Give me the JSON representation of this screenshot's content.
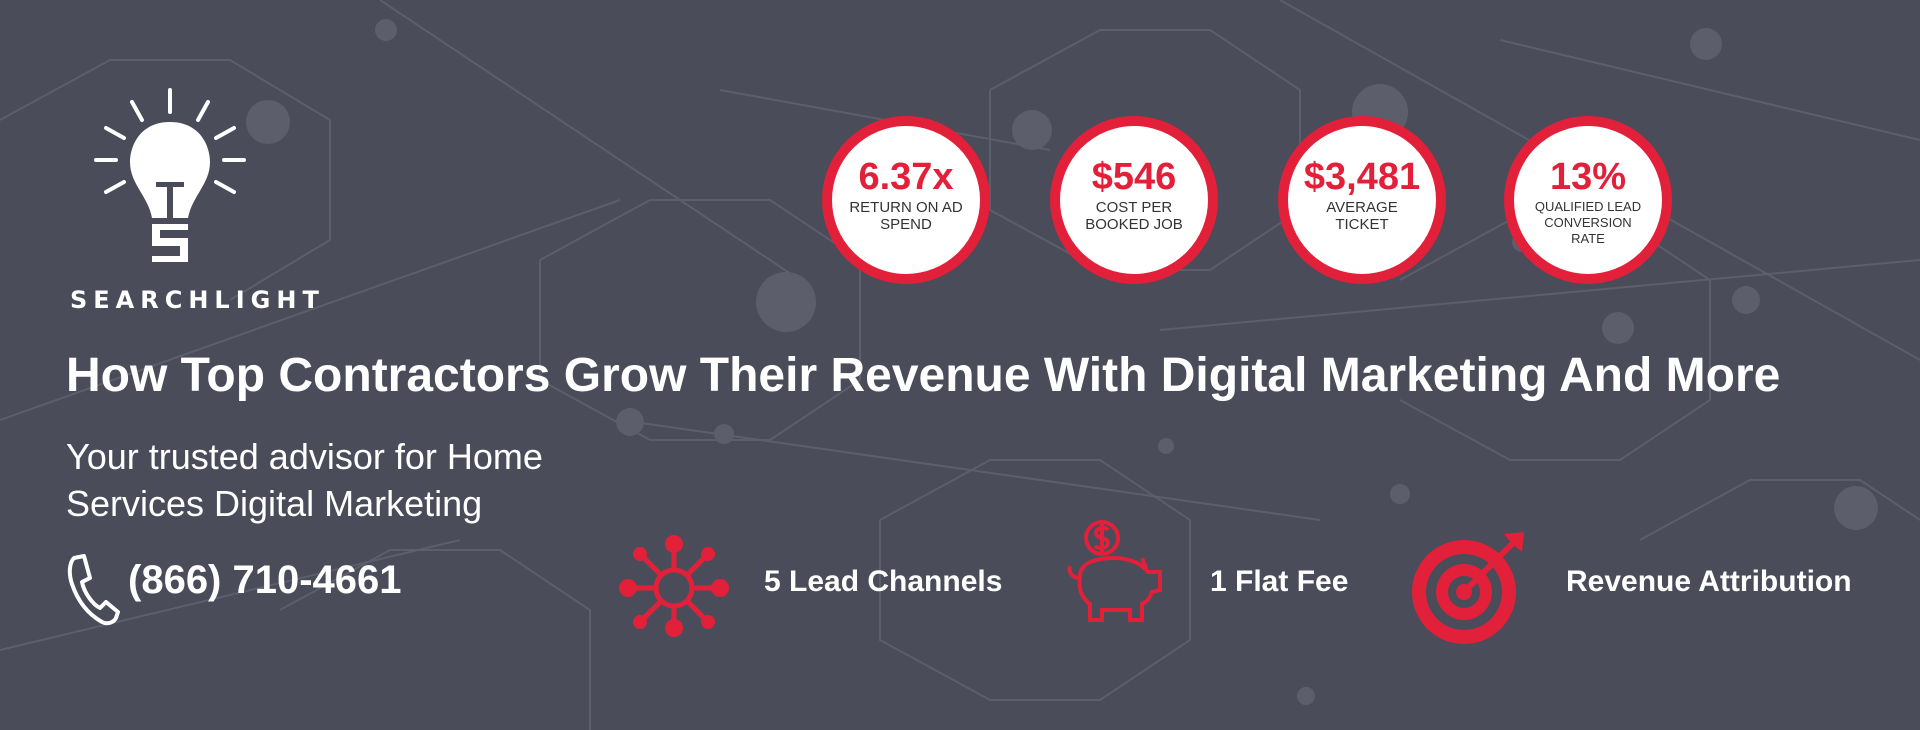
{
  "brand": {
    "name": "SEARCHLIGHT",
    "logo_icon": "lightbulb-icon"
  },
  "stats": [
    {
      "value": "6.37x",
      "label": "RETURN ON AD SPEND"
    },
    {
      "value": "$546",
      "label": "COST PER BOOKED JOB"
    },
    {
      "value": "$3,481",
      "label": "AVERAGE TICKET"
    },
    {
      "value": "13%",
      "label": "QUALIFIED LEAD CONVERSION RATE"
    }
  ],
  "headline": "How Top Contractors Grow Their Revenue With Digital Marketing And More",
  "subheadline": "Your trusted advisor for Home Services Digital Marketing",
  "contact": {
    "phone": "(866) 710-4661",
    "icon": "phone-icon"
  },
  "features": [
    {
      "label": "5 Lead Channels",
      "icon": "network-icon"
    },
    {
      "label": "1 Flat Fee",
      "icon": "piggy-bank-icon"
    },
    {
      "label": "Revenue Attribution",
      "icon": "target-icon"
    }
  ],
  "colors": {
    "background": "#4a4c5a",
    "accent": "#e3203a",
    "text": "#ffffff"
  }
}
